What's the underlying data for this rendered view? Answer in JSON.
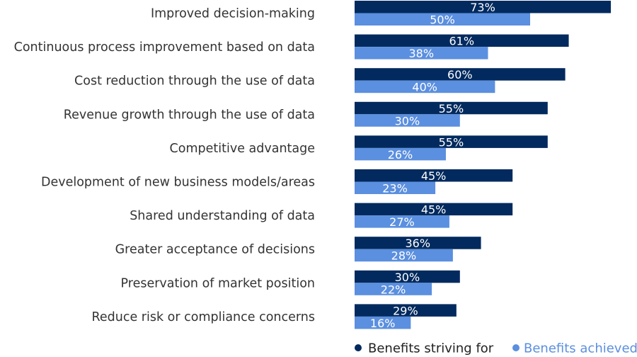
{
  "chart_data": {
    "type": "bar",
    "orientation": "horizontal",
    "categories": [
      "Improved decision-making",
      "Continuous process improvement based on data",
      "Cost reduction through the use of data",
      "Revenue growth through the use of data",
      "Competitive advantage",
      "Development of new business models/areas",
      "Shared understanding of data",
      "Greater acceptance of decisions",
      "Preservation of market position",
      "Reduce risk or compliance concerns"
    ],
    "series": [
      {
        "name": "Benefits striving for",
        "color": "#022a5e",
        "values": [
          73,
          61,
          60,
          55,
          55,
          45,
          45,
          36,
          30,
          29
        ]
      },
      {
        "name": "Benefits achieved",
        "color": "#5b8fdf",
        "values": [
          50,
          38,
          40,
          30,
          26,
          23,
          27,
          28,
          22,
          16
        ]
      }
    ],
    "value_suffix": "%",
    "xlim": [
      0,
      80
    ],
    "grid": false,
    "legend_position": "bottom"
  }
}
